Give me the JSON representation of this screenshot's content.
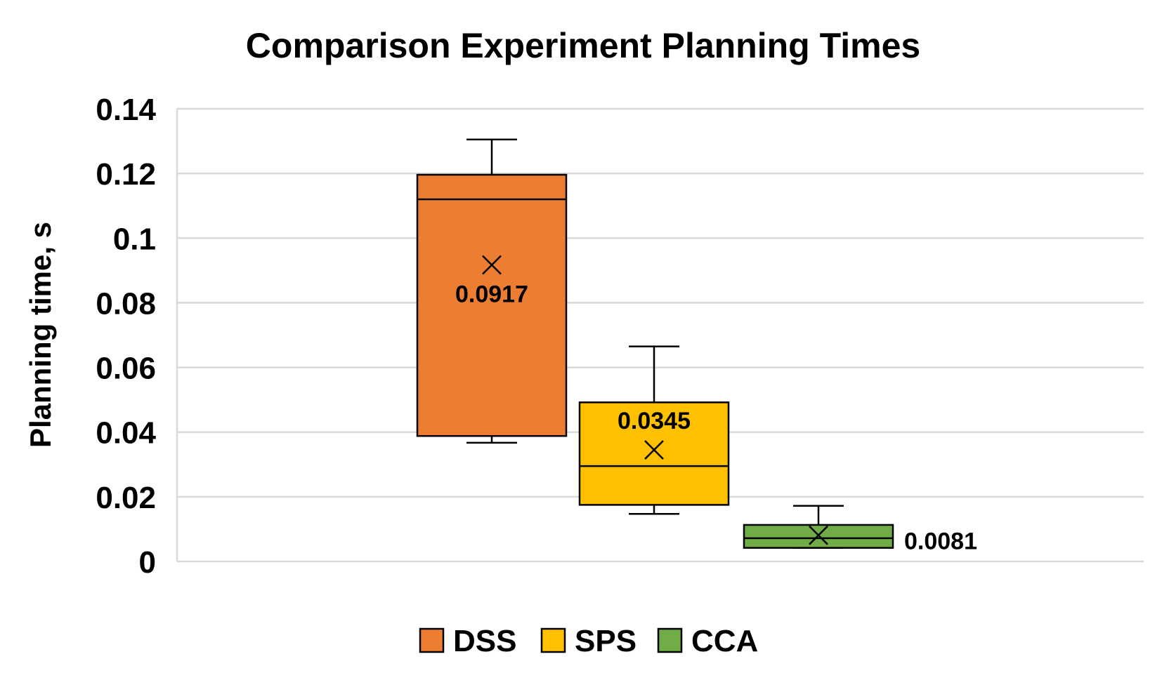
{
  "chart_data": {
    "type": "box",
    "title": "Comparison Experiment Planning Times",
    "ylabel": "Planning time, s",
    "xlabel": "",
    "ylim": [
      0,
      0.14
    ],
    "yticks": [
      0,
      0.02,
      0.04,
      0.06,
      0.08,
      0.1,
      0.12,
      0.14
    ],
    "ytick_labels": [
      "0",
      "0.02",
      "0.04",
      "0.06",
      "0.08",
      "0.1",
      "0.12",
      "0.14"
    ],
    "grid": true,
    "legend_position": "bottom",
    "series": [
      {
        "name": "DSS",
        "color": "#ED7D31",
        "min": 0.0367,
        "q1": 0.0388,
        "median": 0.112,
        "q3": 0.1196,
        "max": 0.1305,
        "mean": 0.0917,
        "mean_label": "0.0917"
      },
      {
        "name": "SPS",
        "color": "#FFC000",
        "min": 0.0147,
        "q1": 0.0175,
        "median": 0.0295,
        "q3": 0.0492,
        "max": 0.0665,
        "mean": 0.0345,
        "mean_label": "0.0345"
      },
      {
        "name": "CCA",
        "color": "#70AD47",
        "min": 0.0042,
        "q1": 0.0042,
        "median": 0.0072,
        "q3": 0.0113,
        "max": 0.0172,
        "mean": 0.0081,
        "mean_label": "0.0081"
      }
    ]
  }
}
